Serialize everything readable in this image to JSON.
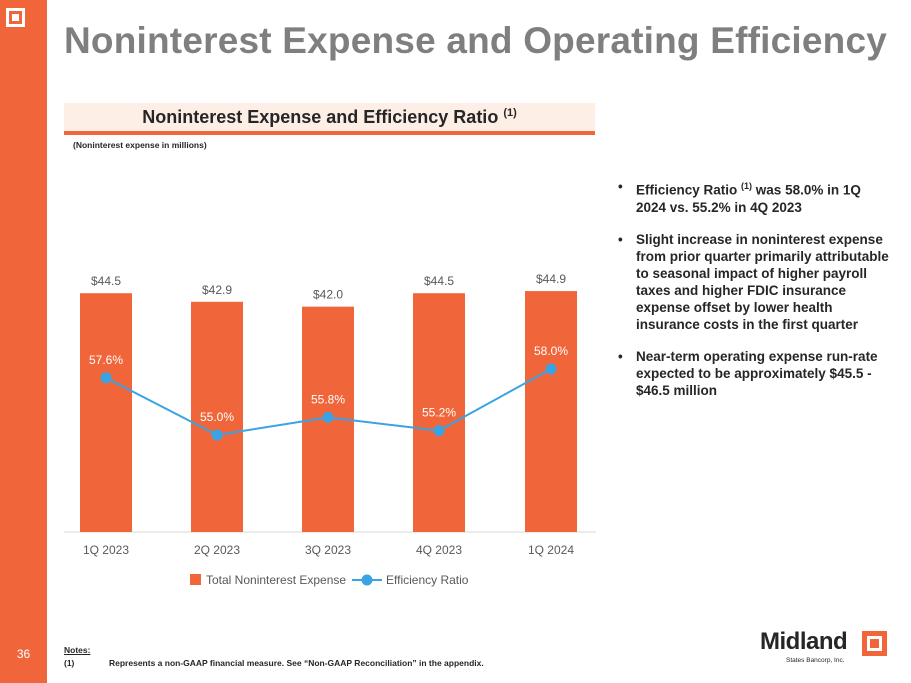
{
  "page": {
    "title": "Noninterest Expense and Operating Efficiency",
    "page_number": "36"
  },
  "chart_header": {
    "title": "Noninterest Expense and Efficiency Ratio",
    "title_footnote": "(1)",
    "subtitle": "(Noninterest expense in millions)"
  },
  "chart_data": {
    "type": "bar",
    "categories": [
      "1Q 2023",
      "2Q 2023",
      "3Q 2023",
      "4Q 2023",
      "1Q 2024"
    ],
    "series": [
      {
        "name": "Total Noninterest Expense",
        "type": "bar",
        "color": "#f0663a",
        "values": [
          44.5,
          42.9,
          42.0,
          44.5,
          44.9
        ],
        "labels": [
          "$44.5",
          "$42.9",
          "$42.0",
          "$44.5",
          "$44.9"
        ]
      },
      {
        "name": "Efficiency Ratio",
        "type": "line",
        "color": "#3aa3e3",
        "values": [
          57.6,
          55.0,
          55.8,
          55.2,
          58.0
        ],
        "labels": [
          "57.6%",
          "55.0%",
          "55.8%",
          "55.2%",
          "58.0%"
        ]
      }
    ],
    "legend": [
      "Total Noninterest Expense",
      "Efficiency Ratio"
    ],
    "legend_position": "bottom",
    "grid": false
  },
  "bullets": {
    "b1_pre": "Efficiency Ratio",
    "b1_sup": "(1)",
    "b1_post": " was 58.0% in 1Q 2024 vs. 55.2% in 4Q 2023",
    "b2": "Slight increase in noninterest expense from prior quarter primarily attributable to seasonal impact of higher payroll taxes and higher FDIC insurance expense offset by lower health insurance costs in the first quarter",
    "b3": "Near-term operating expense run-rate expected to be approximately $45.5 - $46.5 million"
  },
  "notes": {
    "label": "Notes:",
    "n1_num": "(1)",
    "n1_text": "Represents a non-GAAP financial measure. See “Non-GAAP Reconciliation” in the appendix."
  },
  "brand": {
    "name": "Midland",
    "sub": "States Bancorp, Inc."
  }
}
